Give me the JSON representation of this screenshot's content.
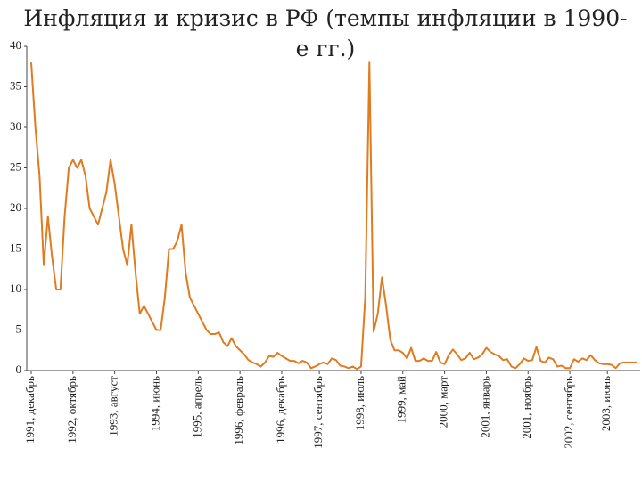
{
  "chart_data": {
    "type": "line",
    "title": "Инфляция и кризис в РФ (темпы инфляции в 1990-е гг.)",
    "color": "#e07b20",
    "ylim": [
      0,
      40
    ],
    "yticks": [
      0,
      5,
      10,
      15,
      20,
      25,
      30,
      35,
      40
    ],
    "grid": false,
    "categories": [
      "1991, декабрь",
      null,
      null,
      null,
      null,
      null,
      null,
      null,
      null,
      null,
      "1992, октябрь",
      null,
      null,
      null,
      null,
      null,
      null,
      null,
      null,
      null,
      "1993, август",
      null,
      null,
      null,
      null,
      null,
      null,
      null,
      null,
      null,
      "1994, июнь",
      null,
      null,
      null,
      null,
      null,
      null,
      null,
      null,
      null,
      "1995, апрель",
      null,
      null,
      null,
      null,
      null,
      null,
      null,
      null,
      null,
      "1996, февраль",
      null,
      null,
      null,
      null,
      null,
      null,
      null,
      null,
      null,
      "1996, декабрь",
      null,
      null,
      null,
      null,
      null,
      null,
      null,
      null,
      "1997, сентябрь",
      null,
      null,
      null,
      null,
      null,
      null,
      null,
      null,
      null,
      "1998, июль",
      null,
      null,
      null,
      null,
      null,
      null,
      null,
      null,
      null,
      "1999, май",
      null,
      null,
      null,
      null,
      null,
      null,
      null,
      null,
      null,
      "2000, март",
      null,
      null,
      null,
      null,
      null,
      null,
      null,
      null,
      null,
      "2001, январь",
      null,
      null,
      null,
      null,
      null,
      null,
      null,
      null,
      null,
      "2001, ноябрь",
      null,
      null,
      null,
      null,
      null,
      null,
      null,
      null,
      null,
      "2002, сентябрь",
      null,
      null,
      null,
      null,
      null,
      null,
      null,
      null,
      "2003, июнь",
      null,
      null,
      null,
      null,
      null,
      null,
      null
    ],
    "values": [
      38,
      30,
      24,
      13,
      19,
      14,
      10,
      10,
      19,
      25,
      26,
      25,
      26,
      24,
      20,
      19,
      18,
      20,
      22,
      26,
      23,
      19,
      15,
      13,
      18,
      12,
      7,
      8,
      7,
      6,
      5,
      5,
      9,
      15,
      15,
      16,
      18,
      12,
      9,
      8,
      7,
      6,
      5,
      4.5,
      4.5,
      4.7,
      3.5,
      3,
      4,
      3,
      2.5,
      2,
      1.3,
      1,
      0.8,
      0.5,
      1,
      1.8,
      1.7,
      2.2,
      1.8,
      1.5,
      1.2,
      1.2,
      0.9,
      1.2,
      1,
      0.3,
      0.5,
      0.8,
      1,
      0.8,
      1.5,
      1.3,
      0.6,
      0.5,
      0.3,
      0.5,
      0.2,
      0.5,
      9,
      38,
      4.8,
      7,
      11.5,
      8,
      3.8,
      2.5,
      2.5,
      2.2,
      1.5,
      2.8,
      1.2,
      1.2,
      1.5,
      1.2,
      1.2,
      2.3,
      1,
      0.8,
      1.9,
      2.6,
      2,
      1.3,
      1.5,
      2.2,
      1.4,
      1.6,
      2,
      2.8,
      2.3,
      2,
      1.8,
      1.3,
      1.4,
      0.5,
      0.3,
      0.8,
      1.5,
      1.2,
      1.3,
      2.9,
      1.2,
      1,
      1.6,
      1.4,
      0.5,
      0.6,
      0.3,
      0.3,
      1.4,
      1.1,
      1.5,
      1.3,
      1.9,
      1.3,
      0.9,
      0.8,
      0.8,
      0.7,
      0.3,
      0.9,
      1,
      1,
      1,
      1
    ]
  }
}
